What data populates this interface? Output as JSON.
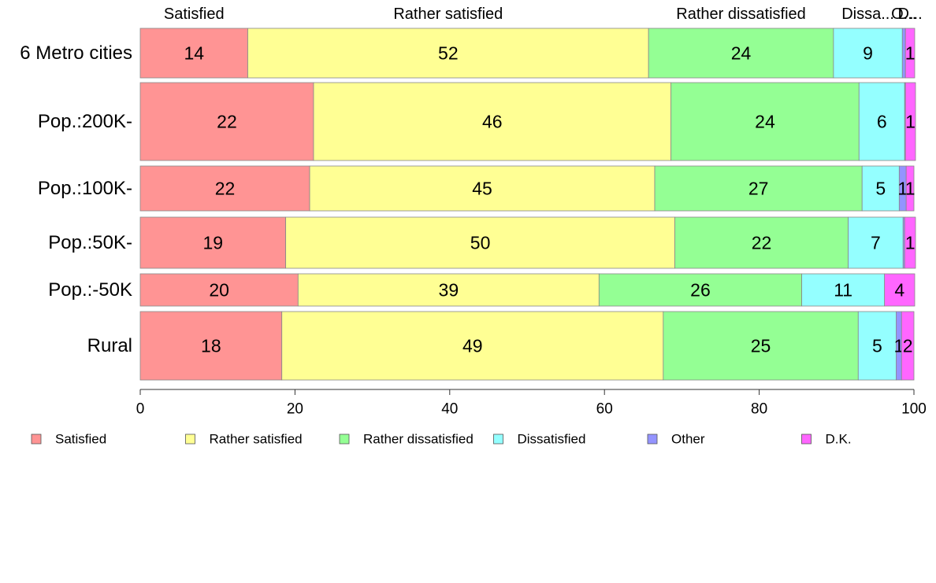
{
  "chart_data": {
    "type": "bar",
    "orientation": "horizontal",
    "stacked": true,
    "title": "",
    "xlabel": "",
    "ylabel": "",
    "xlim": [
      0,
      100
    ],
    "x_ticks": [
      "0",
      "20",
      "40",
      "60",
      "80",
      "100"
    ],
    "grid": false,
    "legend_position": "bottom",
    "categories": [
      "6 Metro cities",
      "Pop.:200K-",
      "Pop.:100K-",
      "Pop.:50K-",
      "Pop.:-50K",
      "Rural"
    ],
    "top_labels": [
      "Satisfied",
      "Rather satisfied",
      "Rather dissatisfied",
      "Dissa...",
      "O...",
      "D..."
    ],
    "series": [
      {
        "name": "Satisfied",
        "color": "#ff9494",
        "values": [
          14,
          22,
          22,
          19,
          20,
          18
        ],
        "exact": [
          13.9,
          22.4,
          21.9,
          18.8,
          20.4,
          18.3
        ]
      },
      {
        "name": "Rather satisfied",
        "color": "#ffff94",
        "values": [
          52,
          46,
          45,
          50,
          39,
          49
        ],
        "exact": [
          51.8,
          46.2,
          44.6,
          50.3,
          38.9,
          49.3
        ]
      },
      {
        "name": "Rather dissatisfied",
        "color": "#94ff94",
        "values": [
          24,
          24,
          27,
          22,
          26,
          25
        ],
        "exact": [
          23.9,
          24.3,
          26.8,
          22.4,
          26.2,
          25.2
        ]
      },
      {
        "name": "Dissatisfied",
        "color": "#94ffff",
        "values": [
          9,
          6,
          5,
          7,
          11,
          5
        ],
        "exact": [
          8.9,
          5.9,
          4.8,
          7.1,
          10.7,
          4.9
        ]
      },
      {
        "name": "Other",
        "color": "#9494ff",
        "values": [
          0,
          0,
          1,
          0,
          0,
          1
        ],
        "exact": [
          0.4,
          0.1,
          0.9,
          0.2,
          0.0,
          0.7
        ]
      },
      {
        "name": "D.K.",
        "color": "#ff66ff",
        "values": [
          1,
          1,
          1,
          1,
          4,
          2
        ],
        "exact": [
          1.2,
          1.3,
          1.0,
          1.4,
          3.9,
          1.6
        ]
      }
    ]
  }
}
